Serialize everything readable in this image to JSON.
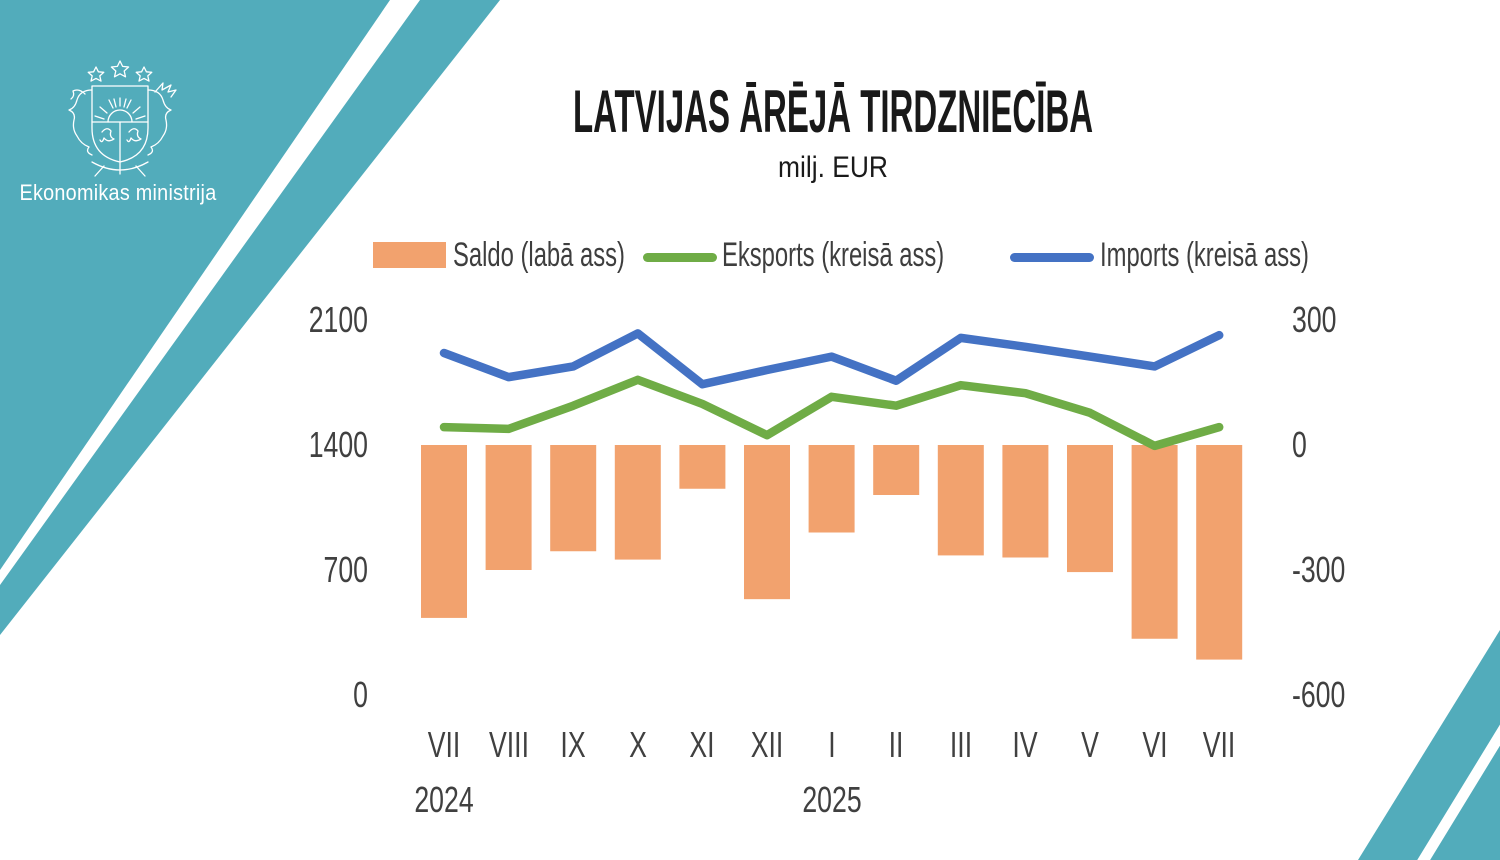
{
  "branding": {
    "logo_label": "Ekonomikas ministrija",
    "teal_color": "#52ACBB",
    "coat_of_arms_icon": "latvia-coat-of-arms"
  },
  "header": {
    "title": "LATVIJAS ĀRĒJĀ TIRDZNIECĪBA",
    "subtitle": "milj. EUR"
  },
  "chart_data": {
    "type": "bar",
    "subtype": "combo-bar-and-lines",
    "categories": [
      "VII",
      "VIII",
      "IX",
      "X",
      "XI",
      "XII",
      "I",
      "II",
      "III",
      "IV",
      "V",
      "VI",
      "VII"
    ],
    "year_labels": [
      {
        "label": "2024",
        "category_index": 0
      },
      {
        "label": "2025",
        "category_index": 6
      }
    ],
    "series": [
      {
        "name": "Saldo (labā ass)",
        "type": "bar",
        "axis": "right",
        "color": "#F2A26E",
        "values": [
          -415,
          -300,
          -255,
          -275,
          -105,
          -370,
          -210,
          -120,
          -265,
          -270,
          -305,
          -465,
          -515
        ]
      },
      {
        "name": "Eksports (kreisā ass)",
        "type": "line",
        "axis": "left",
        "color": "#6FAC46",
        "values": [
          1500,
          1490,
          1620,
          1765,
          1630,
          1455,
          1670,
          1620,
          1735,
          1690,
          1580,
          1395,
          1500
        ]
      },
      {
        "name": "Imports (kreisā ass)",
        "type": "line",
        "axis": "left",
        "color": "#4472C4",
        "values": [
          1915,
          1780,
          1840,
          2025,
          1740,
          1820,
          1895,
          1760,
          2000,
          1950,
          1895,
          1840,
          2015
        ]
      }
    ],
    "left_axis": {
      "ticks": [
        2100,
        1400,
        700,
        0
      ],
      "range": [
        0,
        2100
      ]
    },
    "right_axis": {
      "ticks": [
        300,
        0,
        -300,
        -600
      ],
      "range": [
        -600,
        300
      ]
    },
    "legend_position": "top",
    "grid": false,
    "title": "LATVIJAS ĀRĒJĀ TIRDZNIECĪBA",
    "units": "milj. EUR"
  }
}
